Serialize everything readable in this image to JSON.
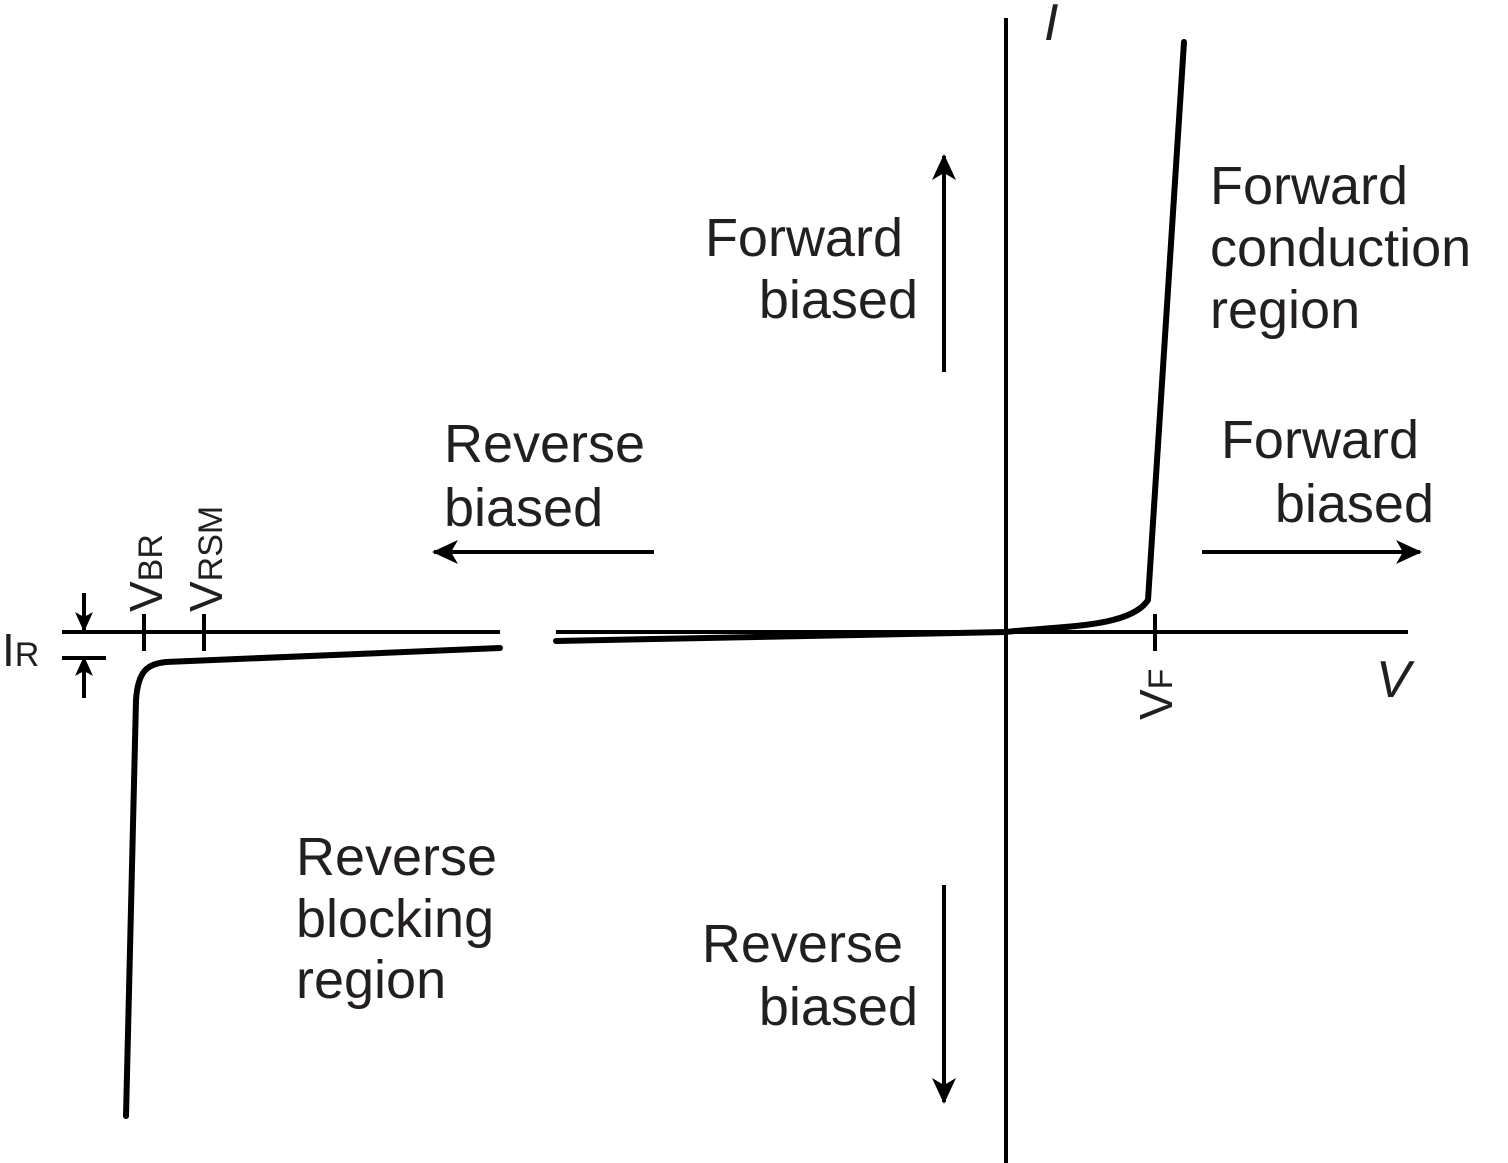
{
  "axes": {
    "y_label": "I",
    "x_label": "V"
  },
  "labels": {
    "forward_biased_up": [
      "Forward",
      "biased"
    ],
    "reverse_biased_down": [
      "Reverse",
      "biased"
    ],
    "forward_biased_right": [
      "Forward",
      "biased"
    ],
    "reverse_biased_left": [
      "Reverse",
      "biased"
    ],
    "forward_conduction_region": [
      "Forward",
      "conduction",
      "region"
    ],
    "reverse_blocking_region": [
      "Reverse",
      "blocking",
      "region"
    ]
  },
  "symbols": {
    "vbr": {
      "main": "V",
      "sub": "BR"
    },
    "vrsm": {
      "main": "V",
      "sub": "RSM"
    },
    "vf": {
      "main": "V",
      "sub": "F"
    },
    "ir": {
      "main": "I",
      "sub": "R"
    }
  }
}
